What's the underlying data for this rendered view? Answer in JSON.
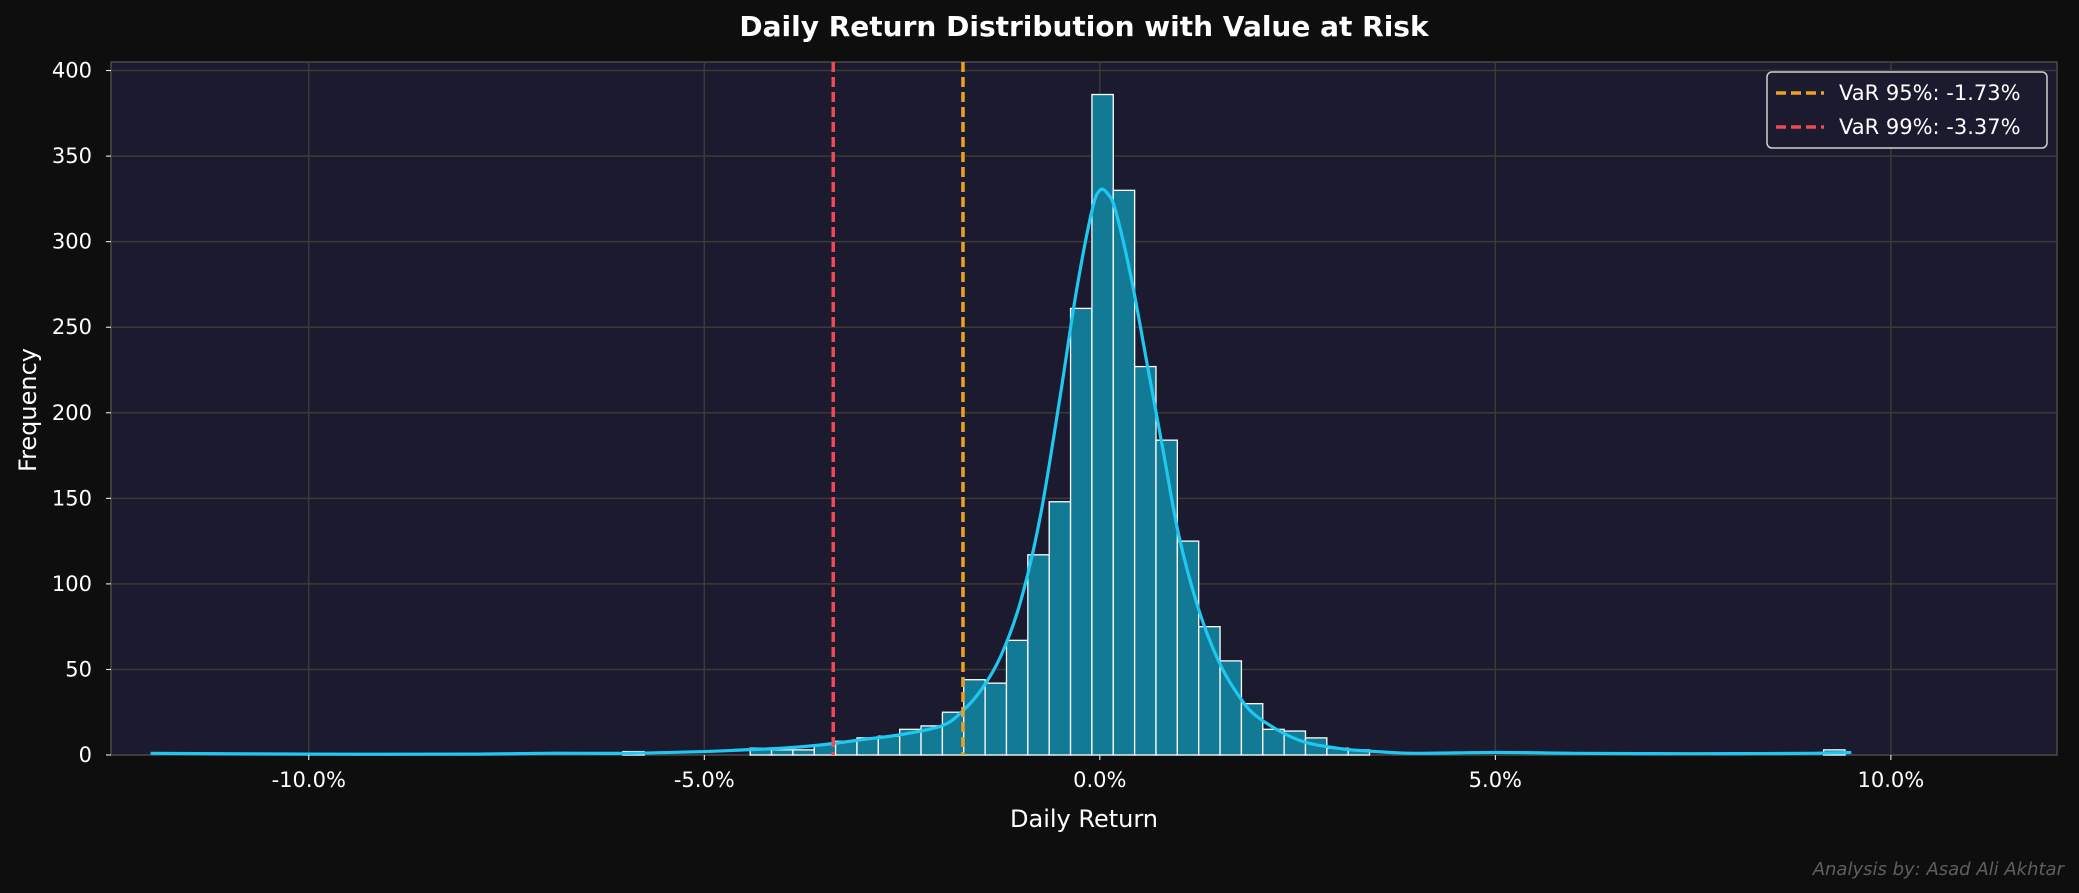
{
  "chart_data": {
    "type": "bar",
    "title": "Daily Return Distribution with Value at Risk",
    "xlabel": "Daily Return",
    "ylabel": "Frequency",
    "xlim": [
      -12.5,
      12.1
    ],
    "ylim": [
      0,
      405
    ],
    "x_ticks": [
      -10,
      -5,
      0,
      5,
      10
    ],
    "x_tick_labels": [
      "-10.0%",
      "-5.0%",
      "0.0%",
      "5.0%",
      "10.0%"
    ],
    "y_ticks": [
      0,
      50,
      100,
      150,
      200,
      250,
      300,
      350,
      400
    ],
    "y_tick_labels": [
      "0",
      "50",
      "100",
      "150",
      "200",
      "250",
      "300",
      "350",
      "400"
    ],
    "grid": true,
    "legend_position": "top-right",
    "bin_width": 0.27,
    "bins": [
      {
        "x": -6.03,
        "count": 2
      },
      {
        "x": -4.42,
        "count": 4
      },
      {
        "x": -4.15,
        "count": 3
      },
      {
        "x": -3.88,
        "count": 3
      },
      {
        "x": -3.61,
        "count": 6
      },
      {
        "x": -3.34,
        "count": 8
      },
      {
        "x": -3.07,
        "count": 10
      },
      {
        "x": -2.8,
        "count": 11
      },
      {
        "x": -2.53,
        "count": 15
      },
      {
        "x": -2.26,
        "count": 17
      },
      {
        "x": -1.99,
        "count": 25
      },
      {
        "x": -1.72,
        "count": 44
      },
      {
        "x": -1.45,
        "count": 42
      },
      {
        "x": -1.18,
        "count": 67
      },
      {
        "x": -0.91,
        "count": 117
      },
      {
        "x": -0.64,
        "count": 148
      },
      {
        "x": -0.37,
        "count": 261
      },
      {
        "x": -0.1,
        "count": 386
      },
      {
        "x": 0.17,
        "count": 330
      },
      {
        "x": 0.44,
        "count": 227
      },
      {
        "x": 0.71,
        "count": 184
      },
      {
        "x": 0.98,
        "count": 125
      },
      {
        "x": 1.25,
        "count": 75
      },
      {
        "x": 1.52,
        "count": 55
      },
      {
        "x": 1.79,
        "count": 30
      },
      {
        "x": 2.06,
        "count": 15
      },
      {
        "x": 2.33,
        "count": 14
      },
      {
        "x": 2.6,
        "count": 10
      },
      {
        "x": 2.87,
        "count": 4
      },
      {
        "x": 3.14,
        "count": 3
      },
      {
        "x": 9.15,
        "count": 3
      }
    ],
    "kde": {
      "x": [
        -12,
        -10,
        -8,
        -7,
        -6,
        -5,
        -4.5,
        -4,
        -3.5,
        -3,
        -2.5,
        -2,
        -1.75,
        -1.5,
        -1.25,
        -1,
        -0.75,
        -0.5,
        -0.3,
        -0.1,
        0,
        0.1,
        0.2,
        0.4,
        0.6,
        0.8,
        1.0,
        1.25,
        1.5,
        1.75,
        2.0,
        2.5,
        3.0,
        3.5,
        4,
        5,
        6,
        7,
        8,
        9,
        9.5
      ],
      "y": [
        1,
        0.5,
        0.5,
        1,
        1,
        2,
        3,
        4,
        6,
        9,
        12,
        17,
        25,
        38,
        58,
        90,
        140,
        210,
        270,
        318,
        330,
        328,
        318,
        278,
        228,
        178,
        128,
        85,
        55,
        35,
        22,
        9,
        4,
        2,
        1,
        1.5,
        1,
        0.8,
        0.8,
        1,
        1.5
      ]
    },
    "series": [
      {
        "name": "VaR 95%: -1.73%",
        "value": -1.73,
        "color": "#f0a020"
      },
      {
        "name": "VaR 99%: -3.37%",
        "value": -3.37,
        "color": "#ef4a52"
      }
    ]
  },
  "credit": "Analysis by: Asad Ali Akhtar",
  "colors": {
    "page_bg": "#0e0e0e",
    "plot_bg": "#1b1a2e",
    "grid": "#3a3a3a",
    "bar_fill": "#137a96",
    "bar_edge": "#ffffff",
    "kde_line": "#1ec8f0",
    "frame": "#4a4a4a"
  }
}
